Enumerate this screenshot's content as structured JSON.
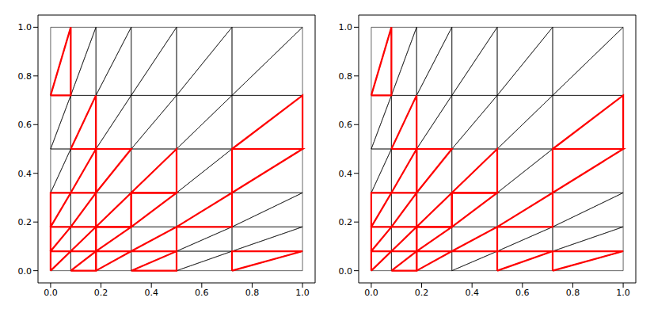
{
  "chart_data": [
    {
      "type": "mesh",
      "x": [
        0,
        0.08,
        0.18,
        0.32,
        0.5,
        0.72,
        1.0,
        0,
        0.08,
        0.18,
        0.32,
        0.5,
        0.72,
        1.0,
        0,
        0.08,
        0.18,
        0.32,
        0.5,
        0.72,
        1.0,
        0,
        0.08,
        0.18,
        0.32,
        0.5,
        0.72,
        1.0,
        0,
        0.08,
        0.18,
        0.32,
        0.5,
        0.72,
        1.0,
        0,
        0.08,
        0.18,
        0.32,
        0.5,
        0.72,
        1.0,
        0,
        0.08,
        0.18,
        0.32,
        0.5,
        0.72,
        1.0
      ],
      "y": [
        0,
        0,
        0,
        0,
        0,
        0,
        0,
        0.08,
        0.08,
        0.08,
        0.08,
        0.08,
        0.08,
        0.08,
        0.18,
        0.18,
        0.18,
        0.18,
        0.18,
        0.18,
        0.18,
        0.32,
        0.32,
        0.32,
        0.32,
        0.32,
        0.32,
        0.32,
        0.5,
        0.5,
        0.5,
        0.5,
        0.5,
        0.5,
        0.5,
        0.72,
        0.72,
        0.72,
        0.72,
        0.72,
        0.72,
        0.72,
        1.0,
        1.0,
        1.0,
        1.0,
        1.0,
        1.0,
        1.0
      ],
      "xlim": [
        -0.05,
        1.05
      ],
      "ylim": [
        -0.05,
        1.05
      ],
      "xticks": [
        {
          "value": 0,
          "label": "0.0"
        },
        0.2,
        0.4,
        0.6,
        0.8,
        {
          "value": 1,
          "label": "1.0"
        }
      ],
      "yticks": [
        {
          "value": 0,
          "label": "0.0"
        },
        0.2,
        0.4,
        0.6,
        0.8,
        {
          "value": 1,
          "label": "1.0"
        }
      ],
      "series": [
        {
          "color": "#000000",
          "triangles": [
            [
              0,
              1,
              8
            ],
            [
              0,
              8,
              7
            ],
            [
              1,
              2,
              9
            ],
            [
              1,
              9,
              8
            ],
            [
              2,
              3,
              10
            ],
            [
              2,
              10,
              9
            ],
            [
              3,
              4,
              11
            ],
            [
              3,
              11,
              10
            ],
            [
              4,
              5,
              12
            ],
            [
              4,
              12,
              11
            ],
            [
              5,
              6,
              13
            ],
            [
              5,
              13,
              12
            ],
            [
              7,
              8,
              15
            ],
            [
              7,
              15,
              14
            ],
            [
              8,
              9,
              16
            ],
            [
              8,
              16,
              15
            ],
            [
              9,
              10,
              17
            ],
            [
              9,
              17,
              16
            ],
            [
              10,
              11,
              18
            ],
            [
              10,
              18,
              17
            ],
            [
              11,
              12,
              19
            ],
            [
              11,
              19,
              18
            ],
            [
              12,
              13,
              20
            ],
            [
              12,
              20,
              19
            ],
            [
              14,
              15,
              22
            ],
            [
              14,
              22,
              21
            ],
            [
              15,
              16,
              23
            ],
            [
              15,
              23,
              22
            ],
            [
              16,
              17,
              24
            ],
            [
              16,
              24,
              23
            ],
            [
              17,
              18,
              25
            ],
            [
              17,
              25,
              24
            ],
            [
              18,
              19,
              26
            ],
            [
              18,
              26,
              25
            ],
            [
              19,
              20,
              27
            ],
            [
              19,
              27,
              26
            ],
            [
              21,
              22,
              29
            ],
            [
              21,
              29,
              28
            ],
            [
              22,
              23,
              30
            ],
            [
              22,
              30,
              29
            ],
            [
              23,
              24,
              31
            ],
            [
              23,
              31,
              30
            ],
            [
              24,
              25,
              32
            ],
            [
              24,
              32,
              31
            ],
            [
              25,
              26,
              33
            ],
            [
              25,
              33,
              32
            ],
            [
              26,
              27,
              34
            ],
            [
              26,
              34,
              33
            ],
            [
              28,
              29,
              36
            ],
            [
              28,
              36,
              35
            ],
            [
              29,
              30,
              37
            ],
            [
              29,
              37,
              36
            ],
            [
              30,
              31,
              38
            ],
            [
              30,
              38,
              37
            ],
            [
              31,
              32,
              39
            ],
            [
              31,
              39,
              38
            ],
            [
              32,
              33,
              40
            ],
            [
              32,
              40,
              39
            ],
            [
              33,
              34,
              41
            ],
            [
              33,
              41,
              40
            ],
            [
              35,
              36,
              43
            ],
            [
              35,
              43,
              42
            ],
            [
              36,
              37,
              44
            ],
            [
              36,
              44,
              43
            ],
            [
              37,
              38,
              45
            ],
            [
              37,
              45,
              44
            ],
            [
              38,
              39,
              46
            ],
            [
              38,
              46,
              45
            ],
            [
              39,
              40,
              47
            ],
            [
              39,
              47,
              46
            ],
            [
              40,
              41,
              48
            ],
            [
              40,
              48,
              47
            ]
          ]
        },
        {
          "color": "#ff0000",
          "triangles": [
            [
              0,
              8,
              7
            ],
            [
              1,
              2,
              9
            ],
            [
              2,
              10,
              9
            ],
            [
              3,
              4,
              11
            ],
            [
              8,
              9,
              16
            ],
            [
              9,
              17,
              16
            ],
            [
              10,
              11,
              18
            ],
            [
              7,
              15,
              14
            ],
            [
              15,
              16,
              23
            ],
            [
              16,
              17,
              24
            ],
            [
              17,
              25,
              24
            ],
            [
              14,
              22,
              21
            ],
            [
              22,
              23,
              30
            ],
            [
              23,
              31,
              30
            ],
            [
              18,
              19,
              26
            ],
            [
              24,
              25,
              32
            ],
            [
              29,
              30,
              37
            ],
            [
              5,
              13,
              12
            ],
            [
              26,
              34,
              33
            ],
            [
              33,
              34,
              41
            ],
            [
              35,
              36,
              43
            ]
          ]
        }
      ]
    },
    {
      "type": "mesh",
      "x": [
        0,
        0.08,
        0.18,
        0.32,
        0.5,
        0.72,
        1.0,
        0,
        0.08,
        0.18,
        0.32,
        0.5,
        0.72,
        1.0,
        0,
        0.08,
        0.18,
        0.32,
        0.5,
        0.72,
        1.0,
        0,
        0.08,
        0.18,
        0.32,
        0.5,
        0.72,
        1.0,
        0,
        0.08,
        0.18,
        0.32,
        0.5,
        0.72,
        1.0,
        0,
        0.08,
        0.18,
        0.32,
        0.5,
        0.72,
        1.0,
        0,
        0.08,
        0.18,
        0.32,
        0.5,
        0.72,
        1.0
      ],
      "y": [
        0,
        0,
        0,
        0,
        0,
        0,
        0,
        0.08,
        0.08,
        0.08,
        0.08,
        0.08,
        0.08,
        0.08,
        0.18,
        0.18,
        0.18,
        0.18,
        0.18,
        0.18,
        0.18,
        0.32,
        0.32,
        0.32,
        0.32,
        0.32,
        0.32,
        0.32,
        0.5,
        0.5,
        0.5,
        0.5,
        0.5,
        0.5,
        0.5,
        0.72,
        0.72,
        0.72,
        0.72,
        0.72,
        0.72,
        0.72,
        1.0,
        1.0,
        1.0,
        1.0,
        1.0,
        1.0,
        1.0
      ],
      "xlim": [
        -0.05,
        1.05
      ],
      "ylim": [
        -0.05,
        1.05
      ],
      "xticks": [
        {
          "value": 0,
          "label": "0.0"
        },
        0.2,
        0.4,
        0.6,
        0.8,
        {
          "value": 1,
          "label": "1.0"
        }
      ],
      "yticks": [
        {
          "value": 0,
          "label": "0.0"
        },
        0.2,
        0.4,
        0.6,
        0.8,
        {
          "value": 1,
          "label": "1.0"
        }
      ],
      "series": [
        {
          "color": "#000000",
          "triangles": [
            [
              0,
              1,
              8
            ],
            [
              0,
              8,
              7
            ],
            [
              1,
              2,
              9
            ],
            [
              1,
              9,
              8
            ],
            [
              2,
              3,
              10
            ],
            [
              2,
              10,
              9
            ],
            [
              3,
              4,
              11
            ],
            [
              3,
              11,
              10
            ],
            [
              4,
              5,
              12
            ],
            [
              4,
              12,
              11
            ],
            [
              5,
              6,
              13
            ],
            [
              5,
              13,
              12
            ],
            [
              7,
              8,
              15
            ],
            [
              7,
              15,
              14
            ],
            [
              8,
              9,
              16
            ],
            [
              8,
              16,
              15
            ],
            [
              9,
              10,
              17
            ],
            [
              9,
              17,
              16
            ],
            [
              10,
              11,
              18
            ],
            [
              10,
              18,
              17
            ],
            [
              11,
              12,
              19
            ],
            [
              11,
              19,
              18
            ],
            [
              12,
              13,
              20
            ],
            [
              12,
              20,
              19
            ],
            [
              14,
              15,
              22
            ],
            [
              14,
              22,
              21
            ],
            [
              15,
              16,
              23
            ],
            [
              15,
              23,
              22
            ],
            [
              16,
              17,
              24
            ],
            [
              16,
              24,
              23
            ],
            [
              17,
              18,
              25
            ],
            [
              17,
              25,
              24
            ],
            [
              18,
              19,
              26
            ],
            [
              18,
              26,
              25
            ],
            [
              19,
              20,
              27
            ],
            [
              19,
              27,
              26
            ],
            [
              21,
              22,
              29
            ],
            [
              21,
              29,
              28
            ],
            [
              22,
              23,
              30
            ],
            [
              22,
              30,
              29
            ],
            [
              23,
              24,
              31
            ],
            [
              23,
              31,
              30
            ],
            [
              24,
              25,
              32
            ],
            [
              24,
              32,
              31
            ],
            [
              25,
              26,
              33
            ],
            [
              25,
              33,
              32
            ],
            [
              26,
              27,
              34
            ],
            [
              26,
              34,
              33
            ],
            [
              28,
              29,
              36
            ],
            [
              28,
              36,
              35
            ],
            [
              29,
              30,
              37
            ],
            [
              29,
              37,
              36
            ],
            [
              30,
              31,
              38
            ],
            [
              30,
              38,
              37
            ],
            [
              31,
              32,
              39
            ],
            [
              31,
              39,
              38
            ],
            [
              32,
              33,
              40
            ],
            [
              32,
              40,
              39
            ],
            [
              33,
              34,
              41
            ],
            [
              33,
              41,
              40
            ],
            [
              35,
              36,
              43
            ],
            [
              35,
              43,
              42
            ],
            [
              36,
              37,
              44
            ],
            [
              36,
              44,
              43
            ],
            [
              37,
              38,
              45
            ],
            [
              37,
              45,
              44
            ],
            [
              38,
              39,
              46
            ],
            [
              38,
              46,
              45
            ],
            [
              39,
              40,
              47
            ],
            [
              39,
              47,
              46
            ],
            [
              40,
              41,
              48
            ],
            [
              40,
              48,
              47
            ]
          ]
        },
        {
          "color": "#ff0000",
          "triangles": [
            [
              0,
              8,
              7
            ],
            [
              1,
              2,
              9
            ],
            [
              2,
              10,
              9
            ],
            [
              4,
              12,
              11
            ],
            [
              8,
              9,
              16
            ],
            [
              9,
              17,
              16
            ],
            [
              10,
              11,
              18
            ],
            [
              7,
              15,
              14
            ],
            [
              15,
              16,
              23
            ],
            [
              16,
              17,
              24
            ],
            [
              17,
              25,
              24
            ],
            [
              14,
              22,
              21
            ],
            [
              22,
              23,
              30
            ],
            [
              23,
              31,
              30
            ],
            [
              18,
              19,
              26
            ],
            [
              24,
              25,
              32
            ],
            [
              29,
              30,
              37
            ],
            [
              5,
              13,
              12
            ],
            [
              26,
              34,
              33
            ],
            [
              33,
              34,
              41
            ],
            [
              35,
              36,
              43
            ]
          ]
        }
      ]
    }
  ]
}
